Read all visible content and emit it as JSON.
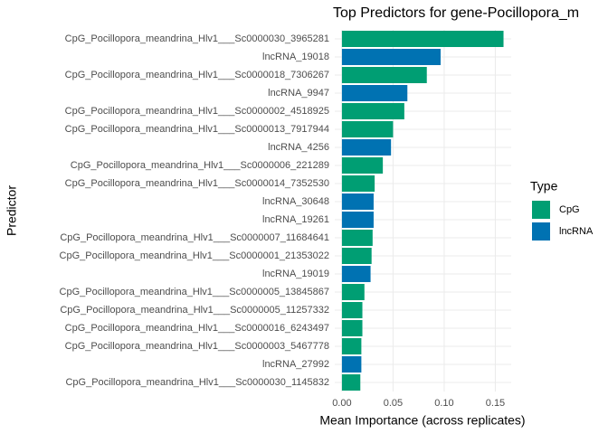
{
  "chart_data": {
    "type": "barh",
    "title": "Top Predictors for gene-Pocillopora_m",
    "x_label": "Mean Importance (across replicates)",
    "y_label": "Predictor",
    "categories": [
      "CpG_Pocillopora_meandrina_Hlv1___Sc0000030_3965281",
      "lncRNA_19018",
      "CpG_Pocillopora_meandrina_Hlv1___Sc0000018_7306267",
      "lncRNA_9947",
      "CpG_Pocillopora_meandrina_Hlv1___Sc0000002_4518925",
      "CpG_Pocillopora_meandrina_Hlv1___Sc0000013_7917944",
      "lncRNA_4256",
      "CpG_Pocillopora_meandrina_Hlv1___Sc0000006_221289",
      "CpG_Pocillopora_meandrina_Hlv1___Sc0000014_7352530",
      "lncRNA_30648",
      "lncRNA_19261",
      "CpG_Pocillopora_meandrina_Hlv1___Sc0000007_11684641",
      "CpG_Pocillopora_meandrina_Hlv1___Sc0000001_21353022",
      "lncRNA_19019",
      "CpG_Pocillopora_meandrina_Hlv1___Sc0000005_13845867",
      "CpG_Pocillopora_meandrina_Hlv1___Sc0000005_11257332",
      "CpG_Pocillopora_meandrina_Hlv1___Sc0000016_6243497",
      "CpG_Pocillopora_meandrina_Hlv1___Sc0000003_5467778",
      "lncRNA_27992",
      "CpG_Pocillopora_meandrina_Hlv1___Sc0000030_1145832"
    ],
    "values": [
      0.158,
      0.0965,
      0.083,
      0.064,
      0.061,
      0.05,
      0.048,
      0.04,
      0.032,
      0.031,
      0.031,
      0.03,
      0.029,
      0.028,
      0.022,
      0.02,
      0.02,
      0.019,
      0.019,
      0.018
    ],
    "groups": [
      "CpG",
      "lncRNA",
      "CpG",
      "lncRNA",
      "CpG",
      "CpG",
      "lncRNA",
      "CpG",
      "CpG",
      "lncRNA",
      "lncRNA",
      "CpG",
      "CpG",
      "lncRNA",
      "CpG",
      "CpG",
      "CpG",
      "CpG",
      "lncRNA",
      "CpG"
    ],
    "legend": {
      "title": "Type",
      "entries": [
        "CpG",
        "lncRNA"
      ],
      "colors": [
        "#009e73",
        "#0072b2"
      ]
    },
    "xlim": [
      -0.007,
      0.1655
    ],
    "xticks": [
      {
        "value": 0,
        "label": "0.00"
      },
      {
        "value": 0.05,
        "label": "0.05"
      },
      {
        "value": 0.1,
        "label": "0.10"
      },
      {
        "value": 0.15,
        "label": "0.15"
      }
    ],
    "grid": true
  }
}
